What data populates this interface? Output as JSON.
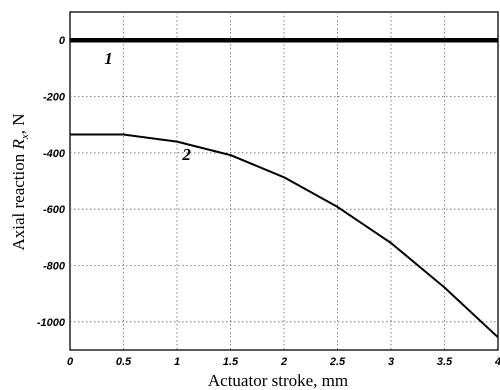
{
  "chart_data": {
    "type": "line",
    "xlabel": "Actuator stroke, mm",
    "ylabel": {
      "main": "Axial reaction ",
      "symbol": "R",
      "sub": "x",
      "unit": ", N"
    },
    "xlim": [
      0,
      4
    ],
    "ylim": [
      -1100,
      100
    ],
    "xticks": [
      "0",
      "0.5",
      "1",
      "1.5",
      "2",
      "2.5",
      "3",
      "3.5",
      "4"
    ],
    "yticks": [
      "0",
      "-200",
      "-400",
      "-600",
      "-800",
      "-1000"
    ],
    "grid": true,
    "series": [
      {
        "name": "1",
        "x": [
          0,
          0.5,
          1,
          1.5,
          2,
          2.5,
          3,
          3.5,
          4
        ],
        "y": [
          0,
          0,
          0,
          0,
          0,
          0,
          0,
          0,
          0
        ]
      },
      {
        "name": "2",
        "x": [
          0,
          0.5,
          1,
          1.5,
          2,
          2.5,
          3,
          3.5,
          4
        ],
        "y": [
          -335,
          -335,
          -360,
          -408,
          -487,
          -592,
          -720,
          -878,
          -1055
        ]
      }
    ]
  }
}
